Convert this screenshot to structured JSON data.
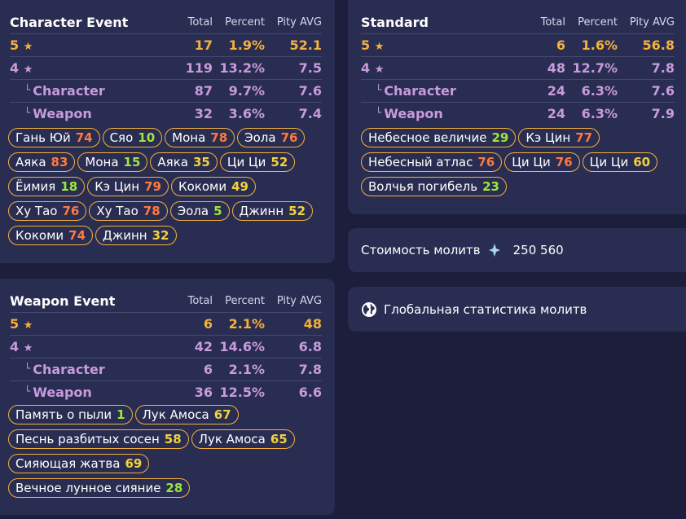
{
  "character_event": {
    "title": "Character Event",
    "headers": [
      "Total",
      "Percent",
      "Pity AVG"
    ],
    "rows": [
      {
        "label": "5",
        "star": "★",
        "total": "17",
        "percent": "1.9%",
        "pity": "52.1"
      },
      {
        "label": "4",
        "star": "★",
        "total": "119",
        "percent": "13.2%",
        "pity": "7.5"
      },
      {
        "label": "Character",
        "total": "87",
        "percent": "9.7%",
        "pity": "7.6"
      },
      {
        "label": "Weapon",
        "total": "32",
        "percent": "3.6%",
        "pity": "7.4"
      }
    ],
    "chips": [
      {
        "name": "Гань Юй",
        "count": "74",
        "color": "red"
      },
      {
        "name": "Сяо",
        "count": "10",
        "color": "green"
      },
      {
        "name": "Мона",
        "count": "78",
        "color": "red"
      },
      {
        "name": "Эола",
        "count": "76",
        "color": "red"
      },
      {
        "name": "Аяка",
        "count": "83",
        "color": "red"
      },
      {
        "name": "Мона",
        "count": "15",
        "color": "green"
      },
      {
        "name": "Аяка",
        "count": "35",
        "color": "yellow"
      },
      {
        "name": "Ци Ци",
        "count": "52",
        "color": "yellow"
      },
      {
        "name": "Ёимия",
        "count": "18",
        "color": "green"
      },
      {
        "name": "Кэ Цин",
        "count": "79",
        "color": "red"
      },
      {
        "name": "Кокоми",
        "count": "49",
        "color": "yellow"
      },
      {
        "name": "Ху Тао",
        "count": "76",
        "color": "red"
      },
      {
        "name": "Ху Тао",
        "count": "78",
        "color": "red"
      },
      {
        "name": "Эола",
        "count": "5",
        "color": "green"
      },
      {
        "name": "Джинн",
        "count": "52",
        "color": "yellow"
      },
      {
        "name": "Кокоми",
        "count": "74",
        "color": "red"
      },
      {
        "name": "Джинн",
        "count": "32",
        "color": "yellow"
      }
    ]
  },
  "weapon_event": {
    "title": "Weapon Event",
    "headers": [
      "Total",
      "Percent",
      "Pity AVG"
    ],
    "rows": [
      {
        "label": "5",
        "star": "★",
        "total": "6",
        "percent": "2.1%",
        "pity": "48"
      },
      {
        "label": "4",
        "star": "★",
        "total": "42",
        "percent": "14.6%",
        "pity": "6.8"
      },
      {
        "label": "Character",
        "total": "6",
        "percent": "2.1%",
        "pity": "7.8"
      },
      {
        "label": "Weapon",
        "total": "36",
        "percent": "12.5%",
        "pity": "6.6"
      }
    ],
    "chips": [
      {
        "name": "Память о пыли",
        "count": "1",
        "color": "green"
      },
      {
        "name": "Лук Амоса",
        "count": "67",
        "color": "yellow"
      },
      {
        "name": "Песнь разбитых сосен",
        "count": "58",
        "color": "yellow"
      },
      {
        "name": "Лук Амоса",
        "count": "65",
        "color": "yellow"
      },
      {
        "name": "Сияющая жатва",
        "count": "69",
        "color": "yellow"
      },
      {
        "name": "Вечное лунное сияние",
        "count": "28",
        "color": "green"
      }
    ]
  },
  "standard": {
    "title": "Standard",
    "headers": [
      "Total",
      "Percent",
      "Pity AVG"
    ],
    "rows": [
      {
        "label": "5",
        "star": "★",
        "total": "6",
        "percent": "1.6%",
        "pity": "56.8"
      },
      {
        "label": "4",
        "star": "★",
        "total": "48",
        "percent": "12.7%",
        "pity": "7.8"
      },
      {
        "label": "Character",
        "total": "24",
        "percent": "6.3%",
        "pity": "7.6"
      },
      {
        "label": "Weapon",
        "total": "24",
        "percent": "6.3%",
        "pity": "7.9"
      }
    ],
    "chips": [
      {
        "name": "Небесное величие",
        "count": "29",
        "color": "green"
      },
      {
        "name": "Кэ Цин",
        "count": "77",
        "color": "red"
      },
      {
        "name": "Небесный атлас",
        "count": "76",
        "color": "red"
      },
      {
        "name": "Ци Ци",
        "count": "76",
        "color": "red"
      },
      {
        "name": "Ци Ци",
        "count": "60",
        "color": "yellow"
      },
      {
        "name": "Волчья погибель",
        "count": "23",
        "color": "green"
      }
    ]
  },
  "wish_cost": {
    "label": "Стоимость молитв",
    "icon": "primogem-icon",
    "value": "250 560"
  },
  "global_stats": {
    "label": "Глобальная статистика молитв",
    "icon": "globe-icon"
  },
  "colors": {
    "gold": "#f5b13b",
    "purple": "#c79bdc",
    "red": "#ff7a3d",
    "green": "#9ee63a",
    "yellow": "#f2d23a"
  }
}
